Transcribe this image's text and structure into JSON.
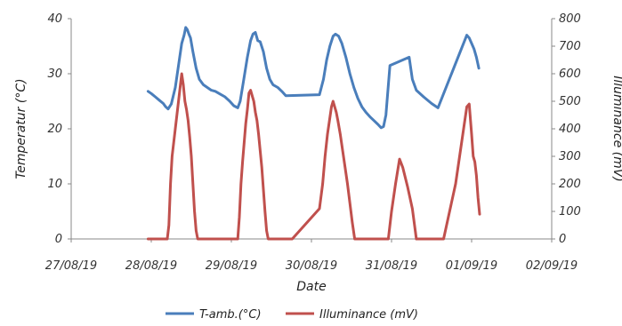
{
  "chart_data": {
    "type": "line",
    "x_axis": {
      "label": "Date",
      "range": [
        "27/08/19",
        "02/09/19"
      ],
      "tick_labels": [
        "27/08/19",
        "28/08/19",
        "29/08/19",
        "30/08/19",
        "31/08/19",
        "01/09/19",
        "02/09/19"
      ]
    },
    "y_axis_left": {
      "label": "Temperatur  (°C)",
      "range": [
        0,
        40
      ],
      "tick_labels": [
        "0",
        "10",
        "20",
        "30",
        "40"
      ]
    },
    "y_axis_right": {
      "label": "Illuminance  (mV)",
      "range": [
        0,
        800
      ],
      "tick_labels": [
        "0",
        "100",
        "200",
        "300",
        "400",
        "500",
        "600",
        "700",
        "800"
      ]
    },
    "grid": false,
    "legend": "bottom",
    "series": [
      {
        "name": "T-amb.(°C)",
        "axis": "left",
        "color": "#4a7ebb",
        "points": [
          [
            0.96,
            26.8
          ],
          [
            1.0,
            26.4
          ],
          [
            1.05,
            25.8
          ],
          [
            1.1,
            25.2
          ],
          [
            1.15,
            24.6
          ],
          [
            1.18,
            24.0
          ],
          [
            1.21,
            23.6
          ],
          [
            1.25,
            24.5
          ],
          [
            1.3,
            27.5
          ],
          [
            1.34,
            31.5
          ],
          [
            1.38,
            35.5
          ],
          [
            1.41,
            37.0
          ],
          [
            1.43,
            38.4
          ],
          [
            1.45,
            38.0
          ],
          [
            1.47,
            37.2
          ],
          [
            1.49,
            36.5
          ],
          [
            1.52,
            34.0
          ],
          [
            1.56,
            31.0
          ],
          [
            1.6,
            29.0
          ],
          [
            1.65,
            28.0
          ],
          [
            1.7,
            27.5
          ],
          [
            1.75,
            27.0
          ],
          [
            1.8,
            26.8
          ],
          [
            1.86,
            26.3
          ],
          [
            1.92,
            25.8
          ],
          [
            1.98,
            25.0
          ],
          [
            2.03,
            24.2
          ],
          [
            2.08,
            23.8
          ],
          [
            2.11,
            25.0
          ],
          [
            2.15,
            28.5
          ],
          [
            2.2,
            33.0
          ],
          [
            2.24,
            36.0
          ],
          [
            2.27,
            37.2
          ],
          [
            2.3,
            37.5
          ],
          [
            2.33,
            36.0
          ],
          [
            2.36,
            35.8
          ],
          [
            2.4,
            34.0
          ],
          [
            2.44,
            31.0
          ],
          [
            2.48,
            29.0
          ],
          [
            2.52,
            28.0
          ],
          [
            2.58,
            27.5
          ],
          [
            2.63,
            26.8
          ],
          [
            2.68,
            26.0
          ],
          [
            3.1,
            26.2
          ],
          [
            3.15,
            29.0
          ],
          [
            3.19,
            32.5
          ],
          [
            3.23,
            35.0
          ],
          [
            3.27,
            36.8
          ],
          [
            3.3,
            37.2
          ],
          [
            3.34,
            36.8
          ],
          [
            3.38,
            35.5
          ],
          [
            3.43,
            33.0
          ],
          [
            3.48,
            30.0
          ],
          [
            3.53,
            27.5
          ],
          [
            3.58,
            25.5
          ],
          [
            3.63,
            24.0
          ],
          [
            3.68,
            23.0
          ],
          [
            3.73,
            22.2
          ],
          [
            3.78,
            21.5
          ],
          [
            3.83,
            20.8
          ],
          [
            3.87,
            20.2
          ],
          [
            3.9,
            20.4
          ],
          [
            3.93,
            22.5
          ],
          [
            3.98,
            31.5
          ],
          [
            4.22,
            33.0
          ],
          [
            4.26,
            29.0
          ],
          [
            4.31,
            27.0
          ],
          [
            4.4,
            25.8
          ],
          [
            4.5,
            24.6
          ],
          [
            4.58,
            23.8
          ],
          [
            4.94,
            37.0
          ],
          [
            4.97,
            36.5
          ],
          [
            5.0,
            35.5
          ],
          [
            5.03,
            34.5
          ],
          [
            5.06,
            33.0
          ],
          [
            5.09,
            31.0
          ]
        ]
      },
      {
        "name": "Illuminance (mV)",
        "axis": "right",
        "color": "#c0504d",
        "points": [
          [
            0.96,
            0
          ],
          [
            1.0,
            0
          ],
          [
            1.08,
            0
          ],
          [
            1.16,
            0
          ],
          [
            1.2,
            0
          ],
          [
            1.22,
            50
          ],
          [
            1.24,
            200
          ],
          [
            1.26,
            300
          ],
          [
            1.28,
            350
          ],
          [
            1.3,
            400
          ],
          [
            1.32,
            450
          ],
          [
            1.34,
            500
          ],
          [
            1.36,
            550
          ],
          [
            1.38,
            600
          ],
          [
            1.4,
            560
          ],
          [
            1.42,
            500
          ],
          [
            1.44,
            470
          ],
          [
            1.46,
            430
          ],
          [
            1.48,
            370
          ],
          [
            1.5,
            300
          ],
          [
            1.52,
            200
          ],
          [
            1.54,
            100
          ],
          [
            1.56,
            30
          ],
          [
            1.58,
            0
          ],
          [
            1.66,
            0
          ],
          [
            1.75,
            0
          ],
          [
            1.85,
            0
          ],
          [
            1.95,
            0
          ],
          [
            2.05,
            0
          ],
          [
            2.08,
            0
          ],
          [
            2.1,
            80
          ],
          [
            2.12,
            200
          ],
          [
            2.14,
            280
          ],
          [
            2.16,
            350
          ],
          [
            2.18,
            420
          ],
          [
            2.2,
            470
          ],
          [
            2.22,
            530
          ],
          [
            2.24,
            540
          ],
          [
            2.26,
            520
          ],
          [
            2.28,
            500
          ],
          [
            2.3,
            460
          ],
          [
            2.32,
            430
          ],
          [
            2.34,
            380
          ],
          [
            2.36,
            320
          ],
          [
            2.38,
            260
          ],
          [
            2.4,
            180
          ],
          [
            2.42,
            100
          ],
          [
            2.44,
            30
          ],
          [
            2.46,
            0
          ],
          [
            2.55,
            0
          ],
          [
            2.64,
            0
          ],
          [
            2.72,
            0
          ],
          [
            2.76,
            0
          ],
          [
            3.1,
            110
          ],
          [
            3.14,
            200
          ],
          [
            3.17,
            300
          ],
          [
            3.2,
            380
          ],
          [
            3.23,
            440
          ],
          [
            3.25,
            480
          ],
          [
            3.27,
            500
          ],
          [
            3.29,
            480
          ],
          [
            3.31,
            460
          ],
          [
            3.33,
            430
          ],
          [
            3.36,
            380
          ],
          [
            3.39,
            320
          ],
          [
            3.42,
            260
          ],
          [
            3.45,
            200
          ],
          [
            3.48,
            130
          ],
          [
            3.51,
            60
          ],
          [
            3.54,
            0
          ],
          [
            3.62,
            0
          ],
          [
            3.72,
            0
          ],
          [
            3.8,
            0
          ],
          [
            3.88,
            0
          ],
          [
            3.96,
            0
          ],
          [
            4.0,
            100
          ],
          [
            4.05,
            200
          ],
          [
            4.1,
            290
          ],
          [
            4.14,
            260
          ],
          [
            4.2,
            190
          ],
          [
            4.26,
            110
          ],
          [
            4.31,
            0
          ],
          [
            4.4,
            0
          ],
          [
            4.5,
            0
          ],
          [
            4.6,
            0
          ],
          [
            4.65,
            0
          ],
          [
            4.8,
            200
          ],
          [
            4.9,
            400
          ],
          [
            4.94,
            480
          ],
          [
            4.97,
            490
          ],
          [
            5.0,
            380
          ],
          [
            5.02,
            300
          ],
          [
            5.04,
            280
          ],
          [
            5.06,
            230
          ],
          [
            5.08,
            150
          ],
          [
            5.1,
            90
          ]
        ]
      }
    ]
  }
}
